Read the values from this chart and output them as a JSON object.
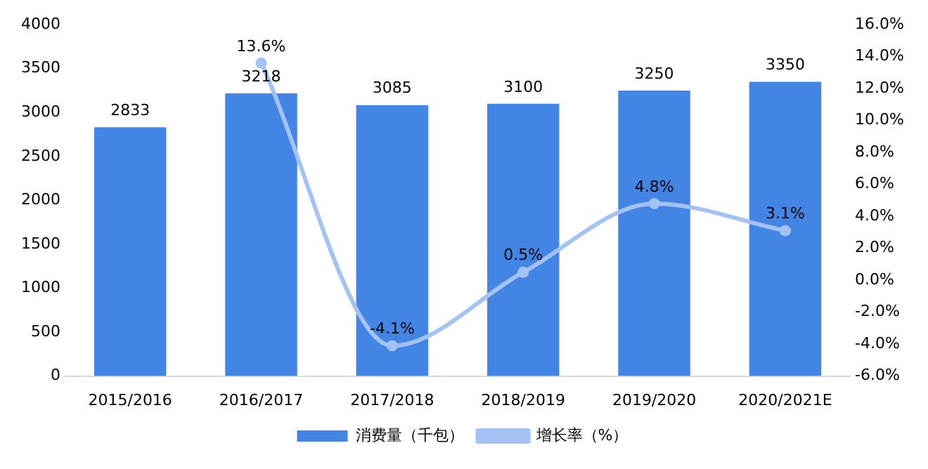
{
  "chart_data": {
    "type": "bar",
    "categories": [
      "2015/2016",
      "2016/2017",
      "2017/2018",
      "2018/2019",
      "2019/2020",
      "2020/2021E"
    ],
    "series": [
      {
        "name": "消费量（千包）",
        "color": "#4285e4",
        "values": [
          2833,
          3218,
          3085,
          3100,
          3250,
          3350
        ],
        "value_labels": [
          "2833",
          "3218",
          "3085",
          "3100",
          "3250",
          "3350"
        ]
      },
      {
        "name": "增长率（%）",
        "type": "line",
        "axis": "y2",
        "color": "#a4c2f4",
        "marker": "circle",
        "values": [
          null,
          13.6,
          -4.1,
          0.5,
          4.8,
          3.1
        ],
        "value_labels": [
          null,
          "13.6%",
          "-4.1%",
          "0.5%",
          "4.8%",
          "3.1%"
        ]
      }
    ],
    "ylim": [
      0,
      4000
    ],
    "yticks": [
      0,
      500,
      1000,
      1500,
      2000,
      2500,
      3000,
      3500,
      4000
    ],
    "y2lim": [
      -6,
      16
    ],
    "y2ticks": [
      {
        "value": -6,
        "label": "-6.0%"
      },
      {
        "value": -4,
        "label": "-4.0%"
      },
      {
        "value": -2,
        "label": "-2.0%"
      },
      {
        "value": 0,
        "label": "0.0%"
      },
      {
        "value": 2,
        "label": "2.0%"
      },
      {
        "value": 4,
        "label": "4.0%"
      },
      {
        "value": 6,
        "label": "6.0%"
      },
      {
        "value": 8,
        "label": "8.0%"
      },
      {
        "value": 10,
        "label": "10.0%"
      },
      {
        "value": 12,
        "label": "12.0%"
      },
      {
        "value": 14,
        "label": "14.0%"
      },
      {
        "value": 16,
        "label": "16.0%"
      }
    ],
    "grid": false,
    "legend": "bottom"
  }
}
